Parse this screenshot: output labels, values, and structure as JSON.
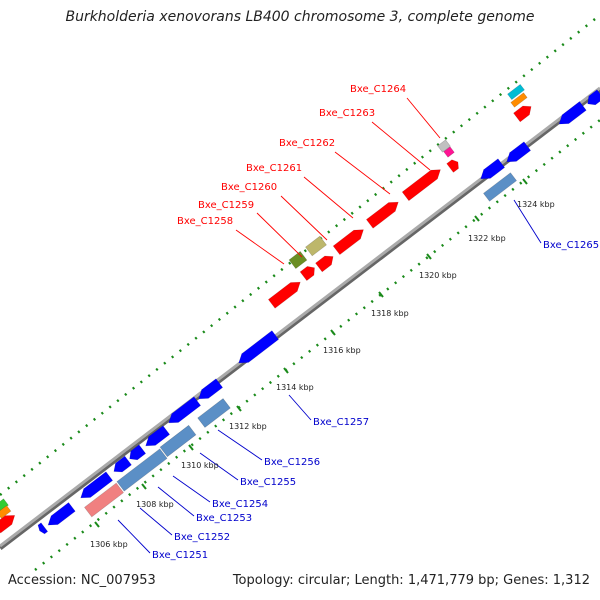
{
  "title": "Burkholderia xenovorans LB400 chromosome 3, complete genome",
  "footer": {
    "accession_label": "Accession:",
    "accession": "NC_007953",
    "topology_label": "Topology:",
    "topology": "circular;",
    "length_label": "Length:",
    "length": "1,471,779 bp;",
    "genes_label": "Genes:",
    "genes": "1,312"
  },
  "colors": {
    "forward_gene": "#ff0000",
    "reverse_gene": "#0000ff",
    "backbone": "#999999",
    "tick": "#1a8a1a",
    "label_forward": "#ff0000",
    "label_reverse": "#0000cc"
  },
  "ticks": [
    "1306 kbp",
    "1308 kbp",
    "1310 kbp",
    "1312 kbp",
    "1314 kbp",
    "1316 kbp",
    "1318 kbp",
    "1320 kbp",
    "1322 kbp",
    "1324 kbp"
  ],
  "forward_labels": [
    "Bxe_C1258",
    "Bxe_C1259",
    "Bxe_C1260",
    "Bxe_C1261",
    "Bxe_C1262",
    "Bxe_C1263",
    "Bxe_C1264"
  ],
  "reverse_labels": [
    "Bxe_C1251",
    "Bxe_C1252",
    "Bxe_C1253",
    "Bxe_C1254",
    "Bxe_C1255",
    "Bxe_C1256",
    "Bxe_C1257",
    "Bxe_C1265"
  ]
}
